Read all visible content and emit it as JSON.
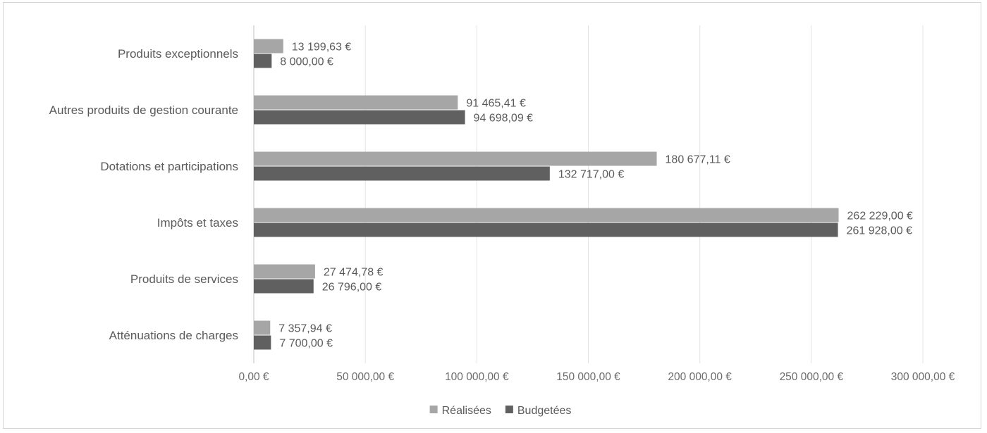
{
  "chart_data": {
    "type": "bar",
    "orientation": "horizontal",
    "title": "",
    "xlabel": "",
    "ylabel": "",
    "categories": [
      "Produits exceptionnels",
      "Autres produits de gestion courante",
      "Dotations et participations",
      "Impôts et taxes",
      "Produits de services",
      "Atténuations de charges"
    ],
    "series": [
      {
        "name": "Réalisées",
        "color": "#a6a6a6",
        "values": [
          13199.63,
          91465.41,
          180677.11,
          262229.0,
          27474.78,
          7357.94
        ],
        "labels": [
          "13 199,63 €",
          "91 465,41 €",
          "180 677,11 €",
          "262 229,00 €",
          "27 474,78 €",
          "7 357,94 €"
        ]
      },
      {
        "name": "Budgetées",
        "color": "#606060",
        "values": [
          8000.0,
          94698.09,
          132717.0,
          261928.0,
          26796.0,
          7700.0
        ],
        "labels": [
          "8 000,00 €",
          "94 698,09 €",
          "132 717,00 €",
          "261 928,00 €",
          "26 796,00 €",
          "7 700,00 €"
        ]
      }
    ],
    "xlim": [
      0,
      300000
    ],
    "xticks": [
      0,
      50000,
      100000,
      150000,
      200000,
      250000,
      300000
    ],
    "xtick_labels": [
      "0,00 €",
      "50 000,00 €",
      "100 000,00 €",
      "150 000,00 €",
      "200 000,00 €",
      "250 000,00 €",
      "300 000,00 €"
    ],
    "grid": true,
    "legend": "bottom"
  }
}
